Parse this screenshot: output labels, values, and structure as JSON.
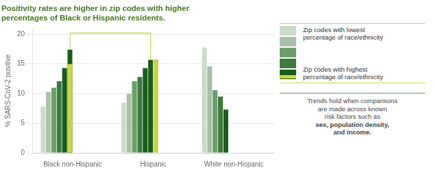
{
  "chart_data": {
    "type": "bar",
    "title": "Positivity rates are higher in zip codes with higher\npercentages of Black or Hispanic residents.",
    "title_color": "#3d7a1a",
    "categories": [
      "Black non-Hispanic",
      "Hispanic",
      "White non-Hispanic"
    ],
    "series": [
      {
        "color": "#ccdccc",
        "values": [
          7.8,
          8.5,
          17.8
        ]
      },
      {
        "color": "#a8c0a8",
        "values": [
          10.3,
          10.0,
          14.6
        ]
      },
      {
        "color": "#6b9e6b",
        "values": [
          11.0,
          12.1,
          10.6
        ]
      },
      {
        "color": "#3d7a3d",
        "values": [
          12.1,
          12.8,
          9.5
        ]
      },
      {
        "color": "#1a5c1a",
        "values": [
          14.3,
          14.3,
          7.3
        ],
        "highlight": {
          "color": "#c8d44a",
          "values": [
            15.0,
            null,
            null
          ]
        }
      },
      {
        "color": "#1a5c1a",
        "values": [
          17.4,
          15.7,
          null
        ],
        "highlight": {
          "color": "#c8d44a",
          "values": [
            null,
            15.8,
            null
          ]
        }
      }
    ],
    "ylabel": "% SARS-CoV-2 positive",
    "ylim": [
      0,
      21
    ],
    "yticks": [
      0,
      5,
      10,
      15,
      20
    ],
    "grid": true,
    "annotation_line": {
      "y": 20.2,
      "color": "#c8d44a",
      "points": [
        {
          "series": 5,
          "category": 0
        },
        {
          "series": 5,
          "category": 1
        }
      ]
    },
    "key": {
      "colors": [
        "#ccdccc",
        "#a8c0a8",
        "#6b9e6b",
        "#3d7a3d",
        "#1a5c1a"
      ],
      "highlight_color": "#c8d44a",
      "line_color": "#c8d44a",
      "low_label": "Zip codes with lowest\npercentage of race/ethnicity",
      "high_label": "Zip codes with highest\npercentage of race/ethnicity"
    },
    "note": {
      "normal": "Trends hold when comparisons\nare made across known\nrisk factors such as",
      "bold": "sex, population density,\nand income.",
      "separator_color": "#6b9e6b"
    }
  }
}
